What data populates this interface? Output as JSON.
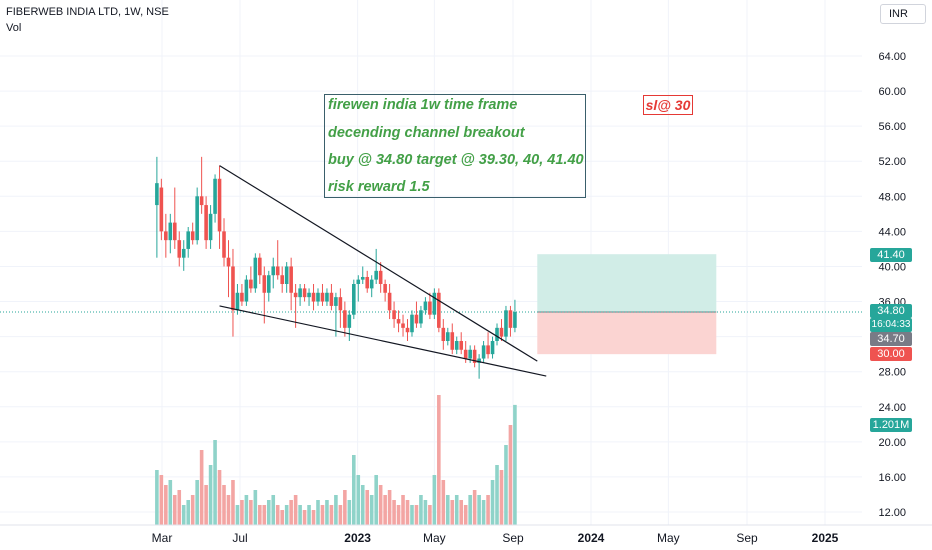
{
  "header": {
    "title": "FIBERWEB INDIA LTD, 1W, NSE",
    "volume_label": "Vol",
    "currency": "INR"
  },
  "annotation": {
    "lines": [
      "firewen india 1w time frame",
      "decending channel breakout",
      "buy @ 34.80 target @ 39.30, 40, 41.40",
      "risk reward 1.5"
    ],
    "stop_loss": "sl@ 30"
  },
  "price_tags": {
    "target": "41.40",
    "last_price": "34.80",
    "countdown": "16:04:33",
    "previous_close": "34.70",
    "stop": "30.00",
    "volume": "1.201M"
  },
  "colors": {
    "up": "#26a69a",
    "down": "#ef5350",
    "vol_up": "#8fd3c9",
    "vol_down": "#f3a5a3",
    "target_zone": "#d1ede7",
    "stop_zone": "#fbd4d2",
    "line": "#131722"
  },
  "chart_data": {
    "type": "candlestick",
    "title": "FIBERWEB INDIA LTD, 1W, NSE",
    "y_axis_ticks": [
      64.0,
      60.0,
      56.0,
      52.0,
      48.0,
      44.0,
      40.0,
      36.0,
      32.0,
      28.0,
      24.0,
      20.0,
      16.0,
      12.0
    ],
    "y_axis_tick_labels": [
      "64.00",
      "60.00",
      "56.00",
      "52.00",
      "48.00",
      "44.00",
      "40.00",
      "36.00",
      "",
      "28.00",
      "24.00",
      "20.00",
      "16.00",
      "12.00"
    ],
    "x_axis_tick_labels": [
      "Mar",
      "Jul",
      "2023",
      "May",
      "Sep",
      "2024",
      "May",
      "Sep",
      "2025"
    ],
    "x_axis_tick_dates": [
      "2022-03-01",
      "2022-07-01",
      "2023-01-01",
      "2023-05-01",
      "2023-09-01",
      "2024-01-01",
      "2024-05-01",
      "2024-09-01",
      "2025-01-01"
    ],
    "candles": [
      {
        "date": "2022-02-21",
        "o": 47,
        "h": 52.5,
        "l": 41,
        "c": 49.5
      },
      {
        "date": "2022-02-28",
        "o": 49,
        "h": 50,
        "l": 43,
        "c": 44
      },
      {
        "date": "2022-03-07",
        "o": 44,
        "h": 46,
        "l": 41,
        "c": 43
      },
      {
        "date": "2022-03-14",
        "o": 43,
        "h": 46,
        "l": 41.5,
        "c": 45
      },
      {
        "date": "2022-03-21",
        "o": 45,
        "h": 49,
        "l": 42,
        "c": 43
      },
      {
        "date": "2022-03-28",
        "o": 43,
        "h": 44,
        "l": 40,
        "c": 41
      },
      {
        "date": "2022-04-04",
        "o": 41,
        "h": 43,
        "l": 39.5,
        "c": 42
      },
      {
        "date": "2022-04-11",
        "o": 42,
        "h": 44.5,
        "l": 41,
        "c": 44
      },
      {
        "date": "2022-04-18",
        "o": 44,
        "h": 45,
        "l": 42.5,
        "c": 43
      },
      {
        "date": "2022-04-25",
        "o": 43,
        "h": 49,
        "l": 42.5,
        "c": 48
      },
      {
        "date": "2022-05-02",
        "o": 48,
        "h": 52.5,
        "l": 46,
        "c": 47
      },
      {
        "date": "2022-05-09",
        "o": 47,
        "h": 48,
        "l": 42,
        "c": 43
      },
      {
        "date": "2022-05-16",
        "o": 43,
        "h": 47,
        "l": 42,
        "c": 46
      },
      {
        "date": "2022-05-23",
        "o": 46,
        "h": 50.5,
        "l": 45,
        "c": 50
      },
      {
        "date": "2022-05-30",
        "o": 50,
        "h": 51.5,
        "l": 42,
        "c": 44
      },
      {
        "date": "2022-06-06",
        "o": 44,
        "h": 45.5,
        "l": 40,
        "c": 41
      },
      {
        "date": "2022-06-13",
        "o": 41,
        "h": 43,
        "l": 36.5,
        "c": 40
      },
      {
        "date": "2022-06-20",
        "o": 40,
        "h": 42,
        "l": 32,
        "c": 35
      },
      {
        "date": "2022-06-27",
        "o": 35,
        "h": 38,
        "l": 34.5,
        "c": 37
      },
      {
        "date": "2022-07-04",
        "o": 37,
        "h": 38,
        "l": 35.5,
        "c": 36
      },
      {
        "date": "2022-07-11",
        "o": 36,
        "h": 39,
        "l": 35.5,
        "c": 38.5
      },
      {
        "date": "2022-07-18",
        "o": 38.5,
        "h": 40,
        "l": 37,
        "c": 37.5
      },
      {
        "date": "2022-07-25",
        "o": 37.5,
        "h": 41.5,
        "l": 37,
        "c": 41
      },
      {
        "date": "2022-08-01",
        "o": 41,
        "h": 41.5,
        "l": 38,
        "c": 39
      },
      {
        "date": "2022-08-08",
        "o": 39,
        "h": 40,
        "l": 33.5,
        "c": 37
      },
      {
        "date": "2022-08-15",
        "o": 37,
        "h": 39.5,
        "l": 36,
        "c": 39
      },
      {
        "date": "2022-08-22",
        "o": 39,
        "h": 41,
        "l": 37.5,
        "c": 40
      },
      {
        "date": "2022-08-29",
        "o": 40,
        "h": 43,
        "l": 38.5,
        "c": 39
      },
      {
        "date": "2022-09-05",
        "o": 39,
        "h": 40,
        "l": 37,
        "c": 38
      },
      {
        "date": "2022-09-12",
        "o": 38,
        "h": 40.5,
        "l": 37,
        "c": 40
      },
      {
        "date": "2022-09-19",
        "o": 40,
        "h": 41,
        "l": 35,
        "c": 37
      },
      {
        "date": "2022-09-26",
        "o": 37,
        "h": 38,
        "l": 33,
        "c": 36.5
      },
      {
        "date": "2022-10-03",
        "o": 36.5,
        "h": 38,
        "l": 35.5,
        "c": 37.5
      },
      {
        "date": "2022-10-10",
        "o": 37.5,
        "h": 38,
        "l": 36,
        "c": 36.5
      },
      {
        "date": "2022-10-17",
        "o": 36.5,
        "h": 37.5,
        "l": 35.5,
        "c": 37
      },
      {
        "date": "2022-10-24",
        "o": 37,
        "h": 38,
        "l": 35,
        "c": 36
      },
      {
        "date": "2022-10-31",
        "o": 36,
        "h": 37.5,
        "l": 35.5,
        "c": 37
      },
      {
        "date": "2022-11-07",
        "o": 37,
        "h": 38,
        "l": 35.5,
        "c": 36
      },
      {
        "date": "2022-11-14",
        "o": 36,
        "h": 37.5,
        "l": 35.5,
        "c": 37
      },
      {
        "date": "2022-11-21",
        "o": 37,
        "h": 38,
        "l": 35,
        "c": 35.5
      },
      {
        "date": "2022-11-28",
        "o": 35.5,
        "h": 37,
        "l": 32,
        "c": 36.5
      },
      {
        "date": "2022-12-05",
        "o": 36.5,
        "h": 37.5,
        "l": 33,
        "c": 35
      },
      {
        "date": "2022-12-12",
        "o": 35,
        "h": 36,
        "l": 32,
        "c": 33
      },
      {
        "date": "2022-12-19",
        "o": 33,
        "h": 35,
        "l": 31.5,
        "c": 34.5
      },
      {
        "date": "2022-12-26",
        "o": 34.5,
        "h": 38.5,
        "l": 34,
        "c": 38
      },
      {
        "date": "2023-01-02",
        "o": 38,
        "h": 39,
        "l": 36,
        "c": 38.5
      },
      {
        "date": "2023-01-09",
        "o": 38.5,
        "h": 40,
        "l": 38,
        "c": 38.8
      },
      {
        "date": "2023-01-16",
        "o": 38.8,
        "h": 39.5,
        "l": 37,
        "c": 37.5
      },
      {
        "date": "2023-01-23",
        "o": 37.5,
        "h": 39,
        "l": 36.5,
        "c": 38.5
      },
      {
        "date": "2023-01-30",
        "o": 38.5,
        "h": 42,
        "l": 38,
        "c": 39.5
      },
      {
        "date": "2023-02-06",
        "o": 39.5,
        "h": 40.5,
        "l": 37,
        "c": 38
      },
      {
        "date": "2023-02-13",
        "o": 38,
        "h": 38.5,
        "l": 36,
        "c": 37
      },
      {
        "date": "2023-02-20",
        "o": 37,
        "h": 38,
        "l": 34,
        "c": 35
      },
      {
        "date": "2023-02-27",
        "o": 35,
        "h": 36,
        "l": 33,
        "c": 34
      },
      {
        "date": "2023-03-06",
        "o": 34,
        "h": 35,
        "l": 32.5,
        "c": 33.5
      },
      {
        "date": "2023-03-13",
        "o": 33.5,
        "h": 34.5,
        "l": 32,
        "c": 33
      },
      {
        "date": "2023-03-20",
        "o": 33,
        "h": 34,
        "l": 31.5,
        "c": 32.5
      },
      {
        "date": "2023-03-27",
        "o": 32.5,
        "h": 35,
        "l": 32,
        "c": 34.5
      },
      {
        "date": "2023-04-03",
        "o": 34.5,
        "h": 36,
        "l": 33,
        "c": 33.5
      },
      {
        "date": "2023-04-10",
        "o": 33.5,
        "h": 35.5,
        "l": 33,
        "c": 35
      },
      {
        "date": "2023-04-17",
        "o": 35,
        "h": 36.5,
        "l": 34.5,
        "c": 36
      },
      {
        "date": "2023-04-24",
        "o": 36,
        "h": 37,
        "l": 34,
        "c": 34.5
      },
      {
        "date": "2023-05-01",
        "o": 34.5,
        "h": 37.5,
        "l": 34,
        "c": 37
      },
      {
        "date": "2023-05-08",
        "o": 37,
        "h": 37.5,
        "l": 32.5,
        "c": 33
      },
      {
        "date": "2023-05-15",
        "o": 33,
        "h": 34,
        "l": 30.5,
        "c": 31.5
      },
      {
        "date": "2023-05-22",
        "o": 31.5,
        "h": 33,
        "l": 31,
        "c": 32.5
      },
      {
        "date": "2023-05-29",
        "o": 32.5,
        "h": 33.5,
        "l": 30,
        "c": 30.5
      },
      {
        "date": "2023-06-05",
        "o": 30.5,
        "h": 32,
        "l": 30,
        "c": 31.5
      },
      {
        "date": "2023-06-12",
        "o": 31.5,
        "h": 32.5,
        "l": 30,
        "c": 30.5
      },
      {
        "date": "2023-06-19",
        "o": 30.5,
        "h": 31.5,
        "l": 29,
        "c": 29.5
      },
      {
        "date": "2023-06-26",
        "o": 29.5,
        "h": 31,
        "l": 29,
        "c": 30.5
      },
      {
        "date": "2023-07-03",
        "o": 30.5,
        "h": 31,
        "l": 28.5,
        "c": 29
      },
      {
        "date": "2023-07-10",
        "o": 29,
        "h": 30,
        "l": 27.2,
        "c": 29.5
      },
      {
        "date": "2023-07-17",
        "o": 29.5,
        "h": 31.5,
        "l": 29,
        "c": 31
      },
      {
        "date": "2023-07-24",
        "o": 31,
        "h": 32.5,
        "l": 29.5,
        "c": 30
      },
      {
        "date": "2023-07-31",
        "o": 30,
        "h": 32,
        "l": 29.5,
        "c": 31.5
      },
      {
        "date": "2023-08-07",
        "o": 31.5,
        "h": 33.5,
        "l": 31,
        "c": 33
      },
      {
        "date": "2023-08-14",
        "o": 33,
        "h": 34,
        "l": 31.5,
        "c": 32
      },
      {
        "date": "2023-08-21",
        "o": 32,
        "h": 35.5,
        "l": 31.5,
        "c": 35
      },
      {
        "date": "2023-08-28",
        "o": 35,
        "h": 35.5,
        "l": 32,
        "c": 33
      },
      {
        "date": "2023-09-04",
        "o": 33,
        "h": 36.2,
        "l": 32.5,
        "c": 34.8
      }
    ],
    "volume_millions": [
      0.55,
      0.5,
      0.4,
      0.45,
      0.3,
      0.35,
      0.2,
      0.25,
      0.3,
      0.45,
      0.75,
      0.4,
      0.6,
      0.85,
      0.55,
      0.4,
      0.3,
      0.45,
      0.2,
      0.25,
      0.3,
      0.25,
      0.35,
      0.2,
      0.2,
      0.25,
      0.3,
      0.2,
      0.15,
      0.2,
      0.25,
      0.3,
      0.2,
      0.15,
      0.2,
      0.15,
      0.25,
      0.2,
      0.25,
      0.2,
      0.3,
      0.2,
      0.35,
      0.25,
      0.7,
      0.5,
      0.4,
      0.35,
      0.3,
      0.5,
      0.4,
      0.3,
      0.35,
      0.25,
      0.2,
      0.3,
      0.25,
      0.2,
      0.2,
      0.3,
      0.25,
      0.2,
      0.5,
      1.3,
      0.45,
      0.3,
      0.25,
      0.3,
      0.25,
      0.2,
      0.3,
      0.35,
      0.3,
      0.25,
      0.3,
      0.45,
      0.6,
      0.55,
      0.8,
      1.0,
      1.201
    ],
    "trendlines": [
      {
        "name": "upper",
        "from": {
          "date": "2022-05-30",
          "price": 51.5
        },
        "to": {
          "date": "2023-10-09",
          "price": 29.2
        }
      },
      {
        "name": "lower",
        "from": {
          "date": "2022-05-30",
          "price": 35.5
        },
        "to": {
          "date": "2023-10-23",
          "price": 27.5
        }
      }
    ],
    "position": {
      "entry": 34.8,
      "target": 41.4,
      "stop": 30.0,
      "start_date": "2023-10-09",
      "end_date": "2024-07-15"
    },
    "last_price": 34.8,
    "grid": true,
    "legend": "none"
  }
}
